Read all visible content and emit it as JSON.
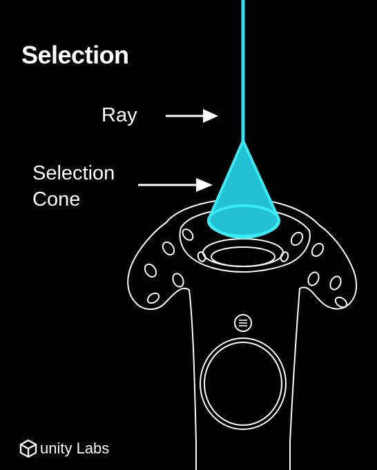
{
  "title": "Selection",
  "labels": {
    "ray": "Ray",
    "cone_line1": "Selection",
    "cone_line2": "Cone"
  },
  "logo": {
    "text": "unity Labs",
    "icon": "unity-cube-icon"
  },
  "colors": {
    "background": "#000000",
    "ray": "#2ee6ef",
    "cone_fill": "#23bfd2",
    "cone_edge": "#38ecf3",
    "controller_outline": "#ffffff",
    "text": "#ffffff"
  }
}
